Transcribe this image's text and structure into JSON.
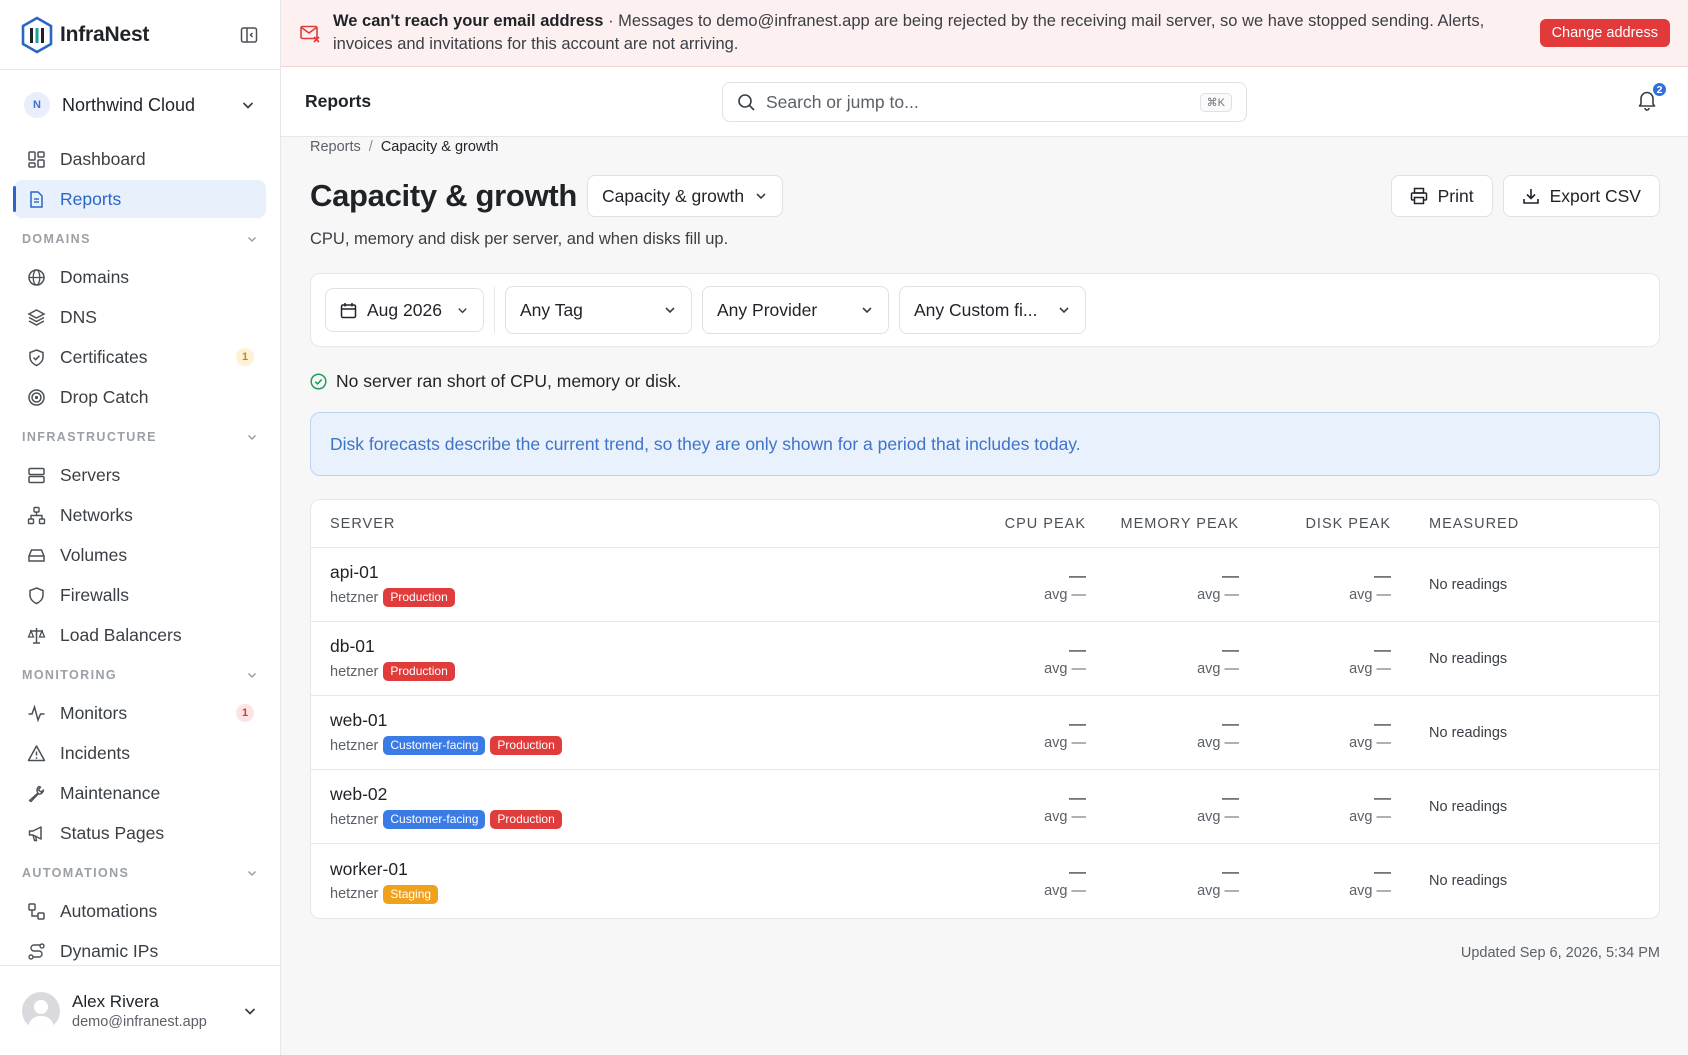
{
  "app": {
    "name": "InfraNest"
  },
  "org": {
    "initial": "N",
    "name": "Northwind Cloud"
  },
  "sidebar": {
    "top": [
      {
        "label": "Dashboard",
        "icon": "dashboard-icon"
      },
      {
        "label": "Reports",
        "icon": "report-icon",
        "active": true
      }
    ],
    "sections": [
      {
        "label": "DOMAINS",
        "items": [
          {
            "label": "Domains",
            "icon": "globe-icon"
          },
          {
            "label": "DNS",
            "icon": "layers-icon"
          },
          {
            "label": "Certificates",
            "icon": "shield-check-icon",
            "badge": "1",
            "badge_color": "amber"
          },
          {
            "label": "Drop Catch",
            "icon": "target-icon"
          }
        ]
      },
      {
        "label": "INFRASTRUCTURE",
        "items": [
          {
            "label": "Servers",
            "icon": "server-icon"
          },
          {
            "label": "Networks",
            "icon": "network-icon"
          },
          {
            "label": "Volumes",
            "icon": "hard-drive-icon"
          },
          {
            "label": "Firewalls",
            "icon": "shield-icon"
          },
          {
            "label": "Load Balancers",
            "icon": "scale-icon"
          }
        ]
      },
      {
        "label": "MONITORING",
        "items": [
          {
            "label": "Monitors",
            "icon": "activity-icon",
            "badge": "1",
            "badge_color": "red"
          },
          {
            "label": "Incidents",
            "icon": "warning-icon"
          },
          {
            "label": "Maintenance",
            "icon": "wrench-icon"
          },
          {
            "label": "Status Pages",
            "icon": "megaphone-icon"
          }
        ]
      },
      {
        "label": "AUTOMATIONS",
        "items": [
          {
            "label": "Automations",
            "icon": "workflow-icon"
          },
          {
            "label": "Dynamic IPs",
            "icon": "route-icon"
          }
        ]
      }
    ]
  },
  "user": {
    "name": "Alex Rivera",
    "email": "demo@infranest.app"
  },
  "alert": {
    "title": "We can't reach your email address",
    "message": " · Messages to demo@infranest.app are being rejected by the receiving mail server, so we have stopped sending. Alerts, invoices and invitations for this account are not arriving.",
    "button": "Change address",
    "color": "#e23a3a"
  },
  "topbar": {
    "title": "Reports",
    "search_placeholder": "Search or jump to...",
    "shortcut": "⌘K",
    "notifications": "2"
  },
  "breadcrumb": {
    "parent": "Reports",
    "separator": "/",
    "current": "Capacity & growth"
  },
  "page": {
    "title": "Capacity & growth",
    "report_select": "Capacity & growth",
    "subtitle": "CPU, memory and disk per server, and when disks fill up.",
    "print": "Print",
    "export": "Export CSV"
  },
  "filters": {
    "period": "Aug 2026",
    "tag": "Any Tag",
    "provider": "Any Provider",
    "custom": "Any Custom fi..."
  },
  "status_line": "No server ran short of CPU, memory or disk.",
  "info_banner": "Disk forecasts describe the current trend, so they are only shown for a period that includes today.",
  "table": {
    "columns": {
      "server": "SERVER",
      "cpu": "CPU PEAK",
      "memory": "MEMORY PEAK",
      "disk": "DISK PEAK",
      "measured": "MEASURED"
    },
    "rows": [
      {
        "name": "api-01",
        "provider": "hetzner",
        "tags": [
          {
            "label": "Production",
            "color": "red"
          }
        ],
        "cpu": "—",
        "cpu_avg": "avg —",
        "mem": "—",
        "mem_avg": "avg —",
        "disk": "—",
        "disk_avg": "avg —",
        "measured": "No readings"
      },
      {
        "name": "db-01",
        "provider": "hetzner",
        "tags": [
          {
            "label": "Production",
            "color": "red"
          }
        ],
        "cpu": "—",
        "cpu_avg": "avg —",
        "mem": "—",
        "mem_avg": "avg —",
        "disk": "—",
        "disk_avg": "avg —",
        "measured": "No readings"
      },
      {
        "name": "web-01",
        "provider": "hetzner",
        "tags": [
          {
            "label": "Customer-facing",
            "color": "blue"
          },
          {
            "label": "Production",
            "color": "red"
          }
        ],
        "cpu": "—",
        "cpu_avg": "avg —",
        "mem": "—",
        "mem_avg": "avg —",
        "disk": "—",
        "disk_avg": "avg —",
        "measured": "No readings"
      },
      {
        "name": "web-02",
        "provider": "hetzner",
        "tags": [
          {
            "label": "Customer-facing",
            "color": "blue"
          },
          {
            "label": "Production",
            "color": "red"
          }
        ],
        "cpu": "—",
        "cpu_avg": "avg —",
        "mem": "—",
        "mem_avg": "avg —",
        "disk": "—",
        "disk_avg": "avg —",
        "measured": "No readings"
      },
      {
        "name": "worker-01",
        "provider": "hetzner",
        "tags": [
          {
            "label": "Staging",
            "color": "amber"
          }
        ],
        "cpu": "—",
        "cpu_avg": "avg —",
        "mem": "—",
        "mem_avg": "avg —",
        "disk": "—",
        "disk_avg": "avg —",
        "measured": "No readings"
      }
    ]
  },
  "updated": "Updated Sep 6, 2026, 5:34 PM"
}
